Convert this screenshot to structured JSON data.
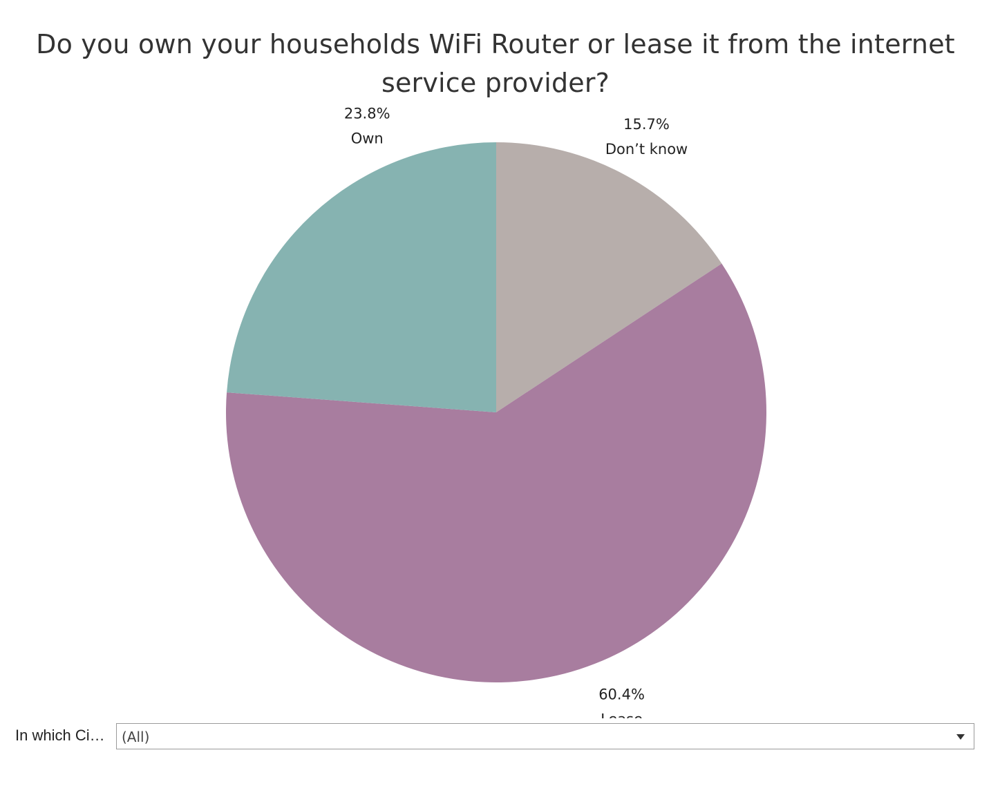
{
  "chart_data": {
    "type": "pie",
    "title": "Do you own your households WiFi Router or lease it from the internet service provider?",
    "slices": [
      {
        "label": "Don’t know",
        "value": 15.7,
        "value_label": "15.7%",
        "color": "#b7aeab"
      },
      {
        "label": "Lease",
        "value": 60.4,
        "value_label": "60.4%",
        "color": "#a87d9f"
      },
      {
        "label": "Own",
        "value": 23.8,
        "value_label": "23.8%",
        "color": "#86b3b1"
      }
    ],
    "start_angle": "12 o'clock",
    "direction": "clockwise",
    "legend": "none"
  },
  "filter": {
    "label": "In which Ci…",
    "value": "(All)",
    "icon": "chevron-down-icon"
  }
}
